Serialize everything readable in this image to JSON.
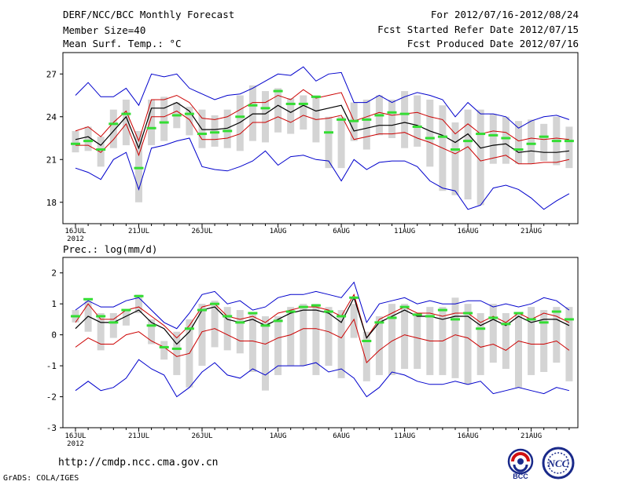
{
  "header": {
    "title": "DERF/NCC/BCC Monthly Forecast",
    "member_size": "Member Size=40",
    "variable1": "Mean Surf. Temp.: °C",
    "period": "For 2012/07/16-2012/08/24",
    "start_date": "Fcst Started Refer Date 2012/07/15",
    "produced_date": "Fcst Produced Date 2012/07/16"
  },
  "footer": {
    "url": "http://cmdp.ncc.cma.gov.cn",
    "credit": "GrADS: COLA/IGES",
    "logo1_text": "BCC",
    "logo2_text": "NCC"
  },
  "colors": {
    "max_min": "#0000cc",
    "spread": "#cc0000",
    "mean": "#000000",
    "obs": "#33dd33",
    "box": "#d4d4d4"
  },
  "chart_data": [
    {
      "type": "line",
      "title": "Mean Surf. Temp.: °C",
      "x_tick_labels": [
        "16JUL",
        "21JUL",
        "26JUL",
        "1AUG",
        "6AUG",
        "11AUG",
        "16AUG",
        "21AUG"
      ],
      "x_tick_index": [
        0,
        5,
        10,
        16,
        21,
        26,
        31,
        36
      ],
      "x_extra_label": "2012",
      "y_ticks": [
        18,
        21,
        24,
        27
      ],
      "ylim": [
        16.5,
        28.5
      ],
      "n_days": 40,
      "series": [
        {
          "name": "max",
          "values": [
            25.5,
            26.4,
            25.4,
            25.4,
            26.0,
            24.8,
            27.0,
            26.8,
            27.0,
            26.0,
            25.6,
            25.2,
            25.5,
            25.6,
            26.0,
            26.5,
            27.0,
            26.9,
            27.5,
            26.5,
            27.0,
            27.1,
            25.0,
            25.0,
            25.5,
            25.0,
            25.4,
            25.7,
            25.5,
            25.2,
            24.0,
            25.0,
            24.2,
            24.2,
            24.0,
            23.2,
            23.7,
            24.0,
            24.1,
            23.8
          ]
        },
        {
          "name": "upper",
          "values": [
            23.0,
            23.3,
            22.6,
            23.6,
            24.4,
            22.3,
            25.2,
            25.2,
            25.5,
            25.0,
            23.9,
            23.8,
            24.0,
            24.5,
            25.0,
            25.0,
            25.5,
            25.2,
            25.9,
            25.3,
            25.5,
            25.7,
            23.7,
            24.0,
            24.3,
            24.1,
            24.2,
            24.3,
            24.0,
            23.8,
            22.8,
            23.5,
            22.8,
            23.0,
            22.9,
            22.3,
            22.5,
            22.4,
            22.5,
            22.4
          ]
        },
        {
          "name": "mean",
          "values": [
            22.4,
            22.6,
            22.0,
            23.0,
            24.0,
            21.8,
            24.6,
            24.6,
            25.0,
            24.4,
            23.1,
            23.1,
            23.2,
            23.6,
            24.2,
            24.2,
            24.8,
            24.3,
            24.8,
            24.4,
            24.6,
            24.8,
            23.0,
            23.2,
            23.4,
            23.4,
            23.6,
            23.4,
            23.0,
            22.7,
            22.2,
            22.8,
            21.8,
            22.0,
            22.1,
            21.5,
            21.6,
            21.5,
            21.5,
            21.6
          ]
        },
        {
          "name": "lower",
          "values": [
            22.0,
            22.0,
            21.5,
            22.4,
            23.5,
            21.3,
            24.0,
            24.0,
            24.4,
            23.8,
            22.4,
            22.4,
            22.5,
            22.8,
            23.6,
            23.6,
            24.0,
            23.6,
            24.1,
            23.8,
            23.9,
            24.1,
            22.4,
            22.6,
            22.8,
            22.8,
            22.9,
            22.5,
            22.2,
            21.8,
            21.4,
            21.9,
            20.9,
            21.1,
            21.3,
            20.7,
            20.7,
            20.8,
            20.8,
            21.0
          ]
        },
        {
          "name": "min",
          "values": [
            20.4,
            20.1,
            19.6,
            21.0,
            21.5,
            18.9,
            21.8,
            22.0,
            22.3,
            22.5,
            20.5,
            20.3,
            20.2,
            20.5,
            20.9,
            21.6,
            20.6,
            21.2,
            21.3,
            21.0,
            20.9,
            19.5,
            21.0,
            20.3,
            20.8,
            20.9,
            20.9,
            20.5,
            19.5,
            19.0,
            18.8,
            17.5,
            17.8,
            19.0,
            19.2,
            18.9,
            18.3,
            17.5,
            18.1,
            18.6
          ]
        },
        {
          "name": "observed",
          "values": [
            22.1,
            22.3,
            21.7,
            23.5,
            24.2,
            20.4,
            23.2,
            23.6,
            24.1,
            24.2,
            22.8,
            22.9,
            23.0,
            24.0,
            24.8,
            24.6,
            25.8,
            24.9,
            24.9,
            25.4,
            22.9,
            23.8,
            23.7,
            23.8,
            24.1,
            24.3,
            24.2,
            23.3,
            22.5,
            22.6,
            21.7,
            22.3,
            22.8,
            22.7,
            22.5,
            21.7,
            22.1,
            22.6,
            22.3,
            22.3
          ]
        },
        {
          "name": "box_high",
          "values": [
            23.0,
            23.3,
            22.6,
            24.5,
            25.2,
            23.0,
            25.2,
            25.4,
            25.0,
            24.7,
            24.5,
            24.1,
            24.5,
            25.5,
            26.2,
            25.8,
            26.0,
            25.3,
            25.5,
            25.5,
            24.0,
            24.0,
            25.0,
            25.2,
            25.5,
            25.2,
            25.8,
            25.5,
            25.2,
            24.8,
            23.6,
            24.5,
            24.5,
            24.2,
            24.0,
            23.7,
            23.8,
            23.5,
            24.0,
            23.3
          ]
        },
        {
          "name": "box_low",
          "values": [
            21.5,
            21.6,
            20.5,
            21.8,
            22.0,
            18.0,
            22.0,
            22.3,
            23.2,
            22.7,
            21.8,
            21.9,
            21.8,
            21.6,
            22.3,
            22.2,
            22.9,
            22.8,
            23.1,
            22.2,
            20.4,
            20.4,
            22.3,
            21.7,
            22.7,
            22.5,
            21.8,
            21.9,
            20.5,
            18.8,
            18.5,
            18.2,
            17.8,
            20.7,
            20.7,
            20.7,
            20.7,
            20.9,
            20.6,
            20.4
          ]
        }
      ]
    },
    {
      "type": "line",
      "title": "Prec.: log(mm/d)",
      "x_tick_labels": [
        "16JUL",
        "21JUL",
        "26JUL",
        "1AUG",
        "6AUG",
        "11AUG",
        "16AUG",
        "21AUG"
      ],
      "x_tick_index": [
        0,
        5,
        10,
        16,
        21,
        26,
        31,
        36
      ],
      "x_extra_label": "2012",
      "y_ticks": [
        -3,
        -2,
        -1,
        0,
        1,
        2
      ],
      "ylim": [
        -3,
        2.5
      ],
      "n_days": 40,
      "series": [
        {
          "name": "max",
          "values": [
            0.8,
            1.1,
            0.9,
            0.9,
            1.1,
            1.2,
            0.8,
            0.4,
            0.2,
            0.7,
            1.3,
            1.4,
            1.0,
            1.1,
            0.8,
            0.9,
            1.2,
            1.3,
            1.3,
            1.4,
            1.3,
            1.2,
            1.7,
            0.4,
            1.0,
            1.1,
            1.2,
            1.0,
            1.1,
            1.0,
            1.0,
            1.1,
            1.1,
            0.9,
            1.0,
            0.9,
            1.0,
            1.2,
            1.1,
            0.8
          ]
        },
        {
          "name": "upper",
          "values": [
            0.4,
            1.0,
            0.5,
            0.5,
            0.8,
            0.9,
            0.6,
            0.3,
            -0.1,
            0.3,
            0.9,
            1.0,
            0.6,
            0.5,
            0.6,
            0.4,
            0.7,
            0.8,
            0.9,
            0.9,
            0.8,
            0.6,
            1.3,
            -0.1,
            0.5,
            0.7,
            0.9,
            0.7,
            0.7,
            0.6,
            0.7,
            0.7,
            0.4,
            0.6,
            0.4,
            0.7,
            0.5,
            0.7,
            0.6,
            0.4
          ]
        },
        {
          "name": "mean",
          "values": [
            0.2,
            0.6,
            0.4,
            0.4,
            0.6,
            0.8,
            0.4,
            0.2,
            -0.3,
            0.1,
            0.8,
            0.9,
            0.5,
            0.4,
            0.5,
            0.3,
            0.5,
            0.7,
            0.8,
            0.8,
            0.7,
            0.4,
            1.2,
            -0.1,
            0.4,
            0.6,
            0.8,
            0.6,
            0.6,
            0.5,
            0.6,
            0.6,
            0.3,
            0.5,
            0.3,
            0.6,
            0.4,
            0.5,
            0.5,
            0.3
          ]
        },
        {
          "name": "lower",
          "values": [
            -0.4,
            -0.1,
            -0.3,
            -0.3,
            0.0,
            0.1,
            -0.2,
            -0.4,
            -0.7,
            -0.6,
            0.1,
            0.2,
            0.0,
            -0.2,
            -0.2,
            -0.3,
            -0.1,
            0.0,
            0.2,
            0.2,
            0.1,
            -0.1,
            0.5,
            -0.9,
            -0.5,
            -0.2,
            0.0,
            -0.1,
            -0.2,
            -0.2,
            0.0,
            -0.1,
            -0.4,
            -0.3,
            -0.5,
            -0.2,
            -0.3,
            -0.3,
            -0.2,
            -0.5
          ]
        },
        {
          "name": "min",
          "values": [
            -1.8,
            -1.5,
            -1.8,
            -1.7,
            -1.4,
            -0.8,
            -1.1,
            -1.3,
            -2.0,
            -1.7,
            -1.2,
            -0.9,
            -1.3,
            -1.4,
            -1.1,
            -1.3,
            -1.0,
            -1.0,
            -1.0,
            -0.9,
            -1.2,
            -1.1,
            -1.4,
            -2.0,
            -1.7,
            -1.2,
            -1.3,
            -1.5,
            -1.6,
            -1.6,
            -1.5,
            -1.6,
            -1.5,
            -1.9,
            -1.8,
            -1.7,
            -1.8,
            -1.9,
            -1.7,
            -1.8
          ]
        },
        {
          "name": "observed",
          "values": [
            0.6,
            1.15,
            0.6,
            0.4,
            0.8,
            1.25,
            0.3,
            -0.4,
            -0.45,
            0.2,
            0.8,
            1.0,
            0.6,
            0.4,
            0.7,
            0.3,
            0.45,
            0.75,
            0.9,
            0.95,
            0.75,
            0.6,
            1.2,
            -0.2,
            0.4,
            0.55,
            0.9,
            0.65,
            0.6,
            0.8,
            0.5,
            0.7,
            0.2,
            0.55,
            0.35,
            0.7,
            0.5,
            0.4,
            0.75,
            0.5
          ]
        },
        {
          "name": "box_high",
          "values": [
            0.8,
            1.1,
            0.7,
            0.7,
            0.8,
            1.3,
            0.5,
            -0.2,
            0.1,
            0.5,
            1.0,
            1.1,
            0.9,
            0.8,
            0.7,
            0.6,
            0.6,
            0.9,
            1.0,
            1.0,
            0.9,
            0.8,
            1.0,
            0.1,
            0.6,
            1.0,
            1.0,
            0.7,
            0.9,
            0.9,
            1.2,
            1.0,
            0.7,
            1.0,
            0.7,
            0.7,
            0.9,
            0.8,
            0.9,
            0.9
          ]
        },
        {
          "name": "box_low",
          "values": [
            0.4,
            0.1,
            -0.5,
            -0.1,
            0.3,
            0.7,
            -0.3,
            -0.8,
            -1.3,
            -1.7,
            -1.0,
            -0.4,
            -0.5,
            -0.6,
            -1.2,
            -1.8,
            -1.3,
            -1.0,
            -1.0,
            -1.3,
            -1.0,
            -1.4,
            -0.1,
            -1.5,
            -1.3,
            -1.3,
            -1.1,
            -1.1,
            -1.3,
            -1.3,
            -1.4,
            -1.6,
            -1.3,
            -0.9,
            -1.1,
            -1.7,
            -1.3,
            -1.2,
            -0.9,
            -1.5
          ]
        }
      ]
    }
  ]
}
